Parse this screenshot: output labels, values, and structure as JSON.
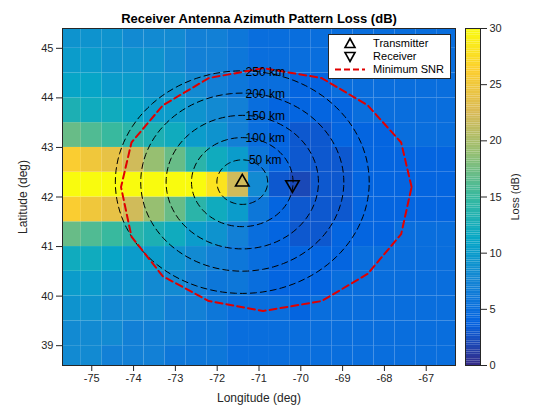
{
  "chart_data": {
    "type": "heatmap",
    "title": "Receiver Antenna Azimuth Pattern Loss (dB)",
    "xlabel": "Longitude (deg)",
    "ylabel": "Latitude (deg)",
    "xlim": [
      -75.7,
      -66.3
    ],
    "ylim": [
      38.6,
      45.4
    ],
    "xticks": [
      -75,
      -74,
      -73,
      -72,
      -71,
      -70,
      -69,
      -68,
      -67
    ],
    "yticks": [
      39,
      40,
      41,
      42,
      43,
      44,
      45
    ],
    "legend": "upper right",
    "colorbar": {
      "label": "Loss (dB)",
      "lim": [
        0,
        30
      ],
      "ticks": [
        0,
        5,
        10,
        15,
        20,
        25,
        30
      ]
    },
    "cells": {
      "lon": [
        -75.5,
        -75,
        -74.5,
        -74,
        -73.5,
        -73,
        -72.5,
        -72,
        -71.5,
        -71,
        -70.5,
        -70,
        -69.5,
        -69,
        -68.5,
        -68,
        -67.5,
        -67,
        -66.5
      ],
      "lat": [
        38.75,
        39.25,
        39.75,
        40.25,
        40.75,
        41.25,
        41.75,
        42.25,
        42.75,
        43.25,
        43.75,
        44.25,
        44.75,
        45.25
      ],
      "values": [
        [
          8,
          8,
          7,
          7,
          7,
          6,
          6,
          6,
          5,
          5,
          5,
          5,
          5,
          5,
          5,
          5,
          5,
          5,
          5
        ],
        [
          8,
          8,
          8,
          7,
          7,
          7,
          6,
          6,
          5,
          5,
          5,
          5,
          5,
          5,
          5,
          5,
          5,
          5,
          5
        ],
        [
          9,
          9,
          8,
          8,
          8,
          7,
          7,
          6,
          5,
          5,
          5,
          4,
          5,
          5,
          5,
          5,
          5,
          5,
          5
        ],
        [
          10,
          10,
          9,
          9,
          8,
          8,
          7,
          6,
          6,
          5,
          4,
          4,
          4,
          5,
          5,
          5,
          5,
          5,
          5
        ],
        [
          12,
          12,
          11,
          10,
          10,
          9,
          8,
          7,
          6,
          5,
          4,
          4,
          4,
          4,
          5,
          5,
          5,
          5,
          5
        ],
        [
          17,
          16,
          15,
          14,
          13,
          12,
          10,
          9,
          7,
          5,
          4,
          3,
          3,
          4,
          4,
          4,
          5,
          5,
          5
        ],
        [
          26,
          25,
          24,
          22,
          19,
          17,
          14,
          12,
          10,
          6,
          4,
          3,
          3,
          3,
          4,
          4,
          4,
          4,
          4
        ],
        [
          30,
          30,
          30,
          30,
          30,
          30,
          30,
          28,
          22,
          8,
          3,
          2,
          3,
          3,
          4,
          4,
          4,
          4,
          4
        ],
        [
          26,
          25,
          24,
          22,
          19,
          17,
          14,
          12,
          10,
          6,
          4,
          3,
          3,
          3,
          4,
          4,
          4,
          4,
          4
        ],
        [
          17,
          16,
          15,
          14,
          13,
          12,
          10,
          9,
          7,
          5,
          4,
          3,
          3,
          4,
          4,
          4,
          5,
          5,
          5
        ],
        [
          13,
          12,
          12,
          11,
          10,
          10,
          9,
          8,
          7,
          5,
          4,
          4,
          4,
          4,
          5,
          5,
          5,
          5,
          5
        ],
        [
          11,
          11,
          10,
          10,
          9,
          9,
          8,
          7,
          6,
          5,
          5,
          4,
          4,
          5,
          5,
          5,
          5,
          5,
          5
        ],
        [
          10,
          10,
          9,
          9,
          9,
          8,
          7,
          7,
          6,
          5,
          5,
          5,
          5,
          5,
          5,
          5,
          5,
          5,
          5
        ],
        [
          9,
          9,
          9,
          8,
          8,
          8,
          7,
          7,
          6,
          5,
          5,
          5,
          5,
          5,
          5,
          5,
          5,
          5,
          5
        ]
      ]
    },
    "series": [
      {
        "name": "Transmitter",
        "type": "scatter",
        "marker": "triangle-up",
        "color": "#000000",
        "lon": [
          -71.4
        ],
        "lat": [
          42.3
        ]
      },
      {
        "name": "Receiver",
        "type": "scatter",
        "marker": "triangle-down",
        "color": "#000000",
        "lon": [
          -70.2
        ],
        "lat": [
          42.25
        ]
      },
      {
        "name": "Minimum SNR",
        "type": "line",
        "line_style": "dashed",
        "color": "#e00000",
        "lon": [
          -67.35,
          -67.6,
          -68.4,
          -69.5,
          -70.9,
          -72.2,
          -73.3,
          -74.05,
          -74.3,
          -74.05,
          -73.3,
          -72.2,
          -70.9,
          -69.5,
          -68.4,
          -67.6
        ],
        "lat": [
          42.2,
          43.1,
          43.85,
          44.4,
          44.6,
          44.4,
          43.85,
          43.1,
          42.2,
          41.2,
          40.4,
          39.9,
          39.7,
          39.9,
          40.45,
          41.25
        ]
      }
    ],
    "range_rings": {
      "radii_km": [
        50,
        100,
        150,
        200,
        250
      ],
      "labels": [
        "50 km",
        "100 km",
        "150 km",
        "200 km",
        "250 km"
      ],
      "color": "#000000",
      "line_style": "dashed"
    }
  }
}
